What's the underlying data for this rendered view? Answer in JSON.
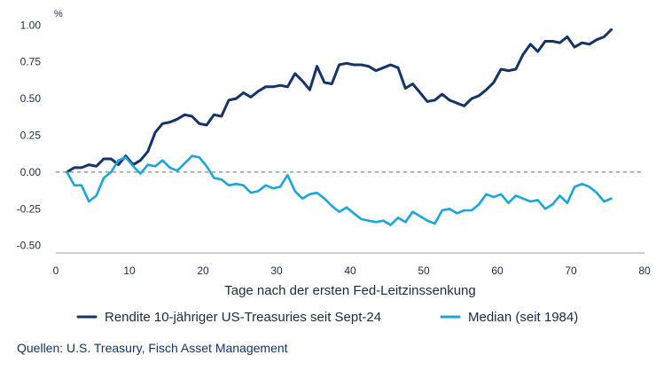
{
  "chart_data": {
    "type": "line",
    "title": "",
    "xlabel": "Tage nach der ersten Fed-Leitzinssenkung",
    "ylabel": "%",
    "xlim": [
      0,
      80
    ],
    "ylim": [
      -0.55,
      1.05
    ],
    "x_ticks": [
      0,
      10,
      20,
      30,
      40,
      50,
      60,
      70,
      80
    ],
    "y_ticks": [
      -0.5,
      -0.25,
      0,
      0.25,
      0.5,
      0.75,
      1.0
    ],
    "x_tick_labels": [
      "0",
      "10",
      "20",
      "30",
      "40",
      "50",
      "60",
      "70",
      "80"
    ],
    "y_tick_labels": [
      "-0.50",
      "-0.25",
      "0.00",
      "0.25",
      "0.50",
      "0.75",
      "1.00"
    ],
    "zero_line": "dashed",
    "grid": false,
    "legend_position": "bottom",
    "series": [
      {
        "name": "Rendite 10-jähriger US-Treasuries seit Sept-24",
        "color": "#14336b",
        "x": [
          1.5,
          2.5,
          3.5,
          4.5,
          5.5,
          6.5,
          7.5,
          8.5,
          9.5,
          10.5,
          11.5,
          12.5,
          13.5,
          14.5,
          15.5,
          16.5,
          17.5,
          18.5,
          19.5,
          20.5,
          21.5,
          22.5,
          23.5,
          24.5,
          25.5,
          26.5,
          27.5,
          28.5,
          29.5,
          30.5,
          31.5,
          32.5,
          33.5,
          34.5,
          35.5,
          36.5,
          37.5,
          38.5,
          39.5,
          40.5,
          41.5,
          42.5,
          43.5,
          44.5,
          45.5,
          46.5,
          47.5,
          48.5,
          49.5,
          50.5,
          51.5,
          52.5,
          53.5,
          54.5,
          55.5,
          56.5,
          57.5,
          58.5,
          59.5,
          60.5,
          61.5,
          62.5,
          63.5,
          64.5,
          65.5,
          66.5,
          67.5,
          68.5,
          69.5,
          70.5,
          71.5,
          72.5,
          73.5,
          74.5,
          75.5
        ],
        "values": [
          0.0,
          0.03,
          0.03,
          0.05,
          0.04,
          0.09,
          0.09,
          0.05,
          0.11,
          0.05,
          0.08,
          0.14,
          0.27,
          0.33,
          0.34,
          0.36,
          0.39,
          0.38,
          0.33,
          0.32,
          0.39,
          0.38,
          0.49,
          0.5,
          0.54,
          0.51,
          0.55,
          0.58,
          0.58,
          0.59,
          0.58,
          0.67,
          0.62,
          0.56,
          0.72,
          0.61,
          0.6,
          0.73,
          0.74,
          0.73,
          0.73,
          0.72,
          0.69,
          0.71,
          0.73,
          0.71,
          0.57,
          0.6,
          0.54,
          0.48,
          0.49,
          0.53,
          0.49,
          0.47,
          0.45,
          0.5,
          0.52,
          0.56,
          0.61,
          0.7,
          0.69,
          0.7,
          0.8,
          0.87,
          0.82,
          0.89,
          0.89,
          0.88,
          0.92,
          0.85,
          0.88,
          0.87,
          0.9,
          0.92,
          0.97
        ]
      },
      {
        "name": "Median (seit 1984)",
        "color": "#1aa6dc",
        "x": [
          1.5,
          2.5,
          3.5,
          4.5,
          5.5,
          6.5,
          7.5,
          8.5,
          9.5,
          10.5,
          11.5,
          12.5,
          13.5,
          14.5,
          15.5,
          16.5,
          17.5,
          18.5,
          19.5,
          20.5,
          21.5,
          22.5,
          23.5,
          24.5,
          25.5,
          26.5,
          27.5,
          28.5,
          29.5,
          30.5,
          31.5,
          32.5,
          33.5,
          34.5,
          35.5,
          36.5,
          37.5,
          38.5,
          39.5,
          40.5,
          41.5,
          42.5,
          43.5,
          44.5,
          45.5,
          46.5,
          47.5,
          48.5,
          49.5,
          50.5,
          51.5,
          52.5,
          53.5,
          54.5,
          55.5,
          56.5,
          57.5,
          58.5,
          59.5,
          60.5,
          61.5,
          62.5,
          63.5,
          64.5,
          65.5,
          66.5,
          67.5,
          68.5,
          69.5,
          70.5,
          71.5,
          72.5,
          73.5,
          74.5,
          75.5
        ],
        "values": [
          0.0,
          -0.09,
          -0.09,
          -0.2,
          -0.16,
          -0.04,
          0.0,
          0.08,
          0.1,
          0.04,
          -0.01,
          0.05,
          0.04,
          0.08,
          0.03,
          0.01,
          0.06,
          0.11,
          0.1,
          0.04,
          -0.04,
          -0.05,
          -0.09,
          -0.08,
          -0.09,
          -0.14,
          -0.13,
          -0.09,
          -0.11,
          -0.1,
          -0.02,
          -0.13,
          -0.18,
          -0.15,
          -0.14,
          -0.18,
          -0.23,
          -0.27,
          -0.24,
          -0.28,
          -0.32,
          -0.33,
          -0.34,
          -0.33,
          -0.36,
          -0.31,
          -0.34,
          -0.27,
          -0.3,
          -0.33,
          -0.35,
          -0.26,
          -0.25,
          -0.28,
          -0.26,
          -0.26,
          -0.22,
          -0.15,
          -0.17,
          -0.15,
          -0.21,
          -0.16,
          -0.18,
          -0.2,
          -0.19,
          -0.25,
          -0.22,
          -0.16,
          -0.21,
          -0.1,
          -0.08,
          -0.1,
          -0.14,
          -0.2,
          -0.18
        ]
      }
    ]
  },
  "source": "Quellen: U.S. Treasury, Fisch Asset Management"
}
